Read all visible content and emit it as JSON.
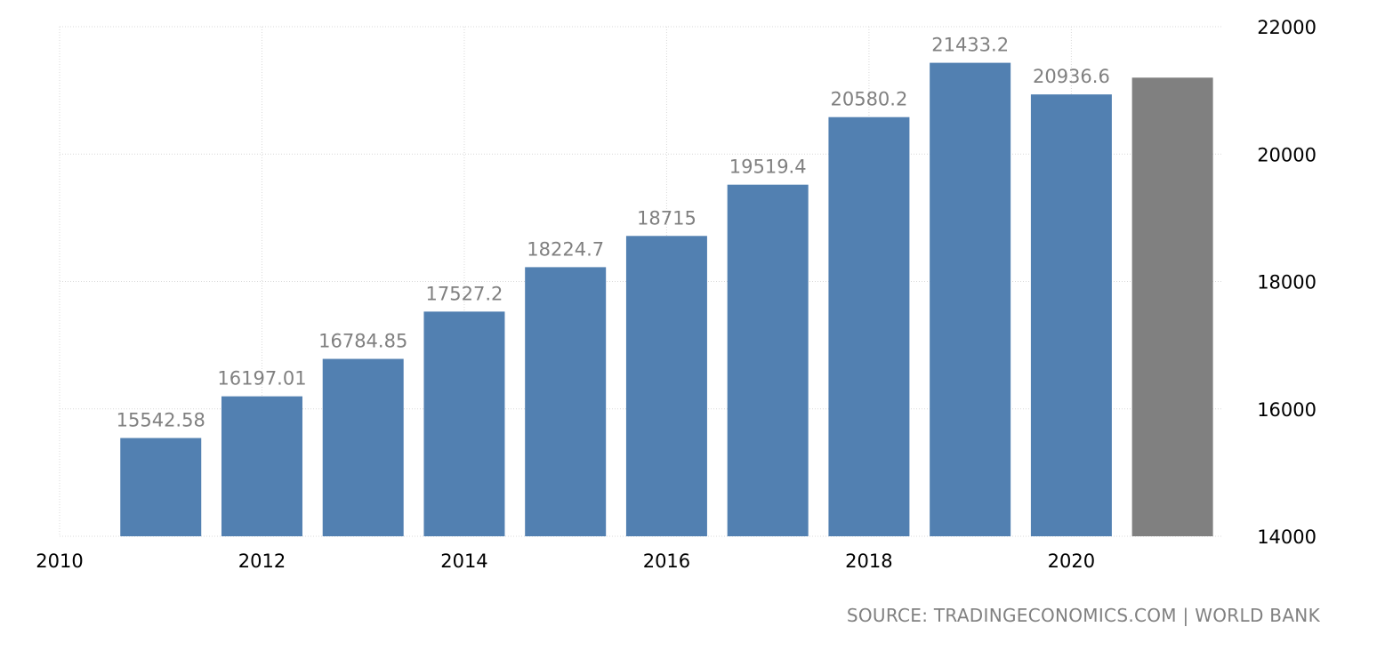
{
  "chart_data": {
    "type": "bar",
    "title": "",
    "xlabel": "",
    "ylabel": "",
    "x": [
      2011,
      2012,
      2013,
      2014,
      2015,
      2016,
      2017,
      2018,
      2019,
      2020,
      2021
    ],
    "values": [
      15542.58,
      16197.01,
      16784.85,
      17527.2,
      18224.7,
      18715,
      19519.4,
      20580.2,
      21433.2,
      20936.6,
      21200
    ],
    "data_labels": [
      "15542.58",
      "16197.01",
      "16784.85",
      "17527.2",
      "18224.7",
      "18715",
      "19519.4",
      "20580.2",
      "21433.2",
      "20936.6",
      ""
    ],
    "xlim": [
      2010,
      2021.5
    ],
    "ylim": [
      14000,
      22000
    ],
    "x_ticks": [
      2010,
      2012,
      2014,
      2016,
      2018,
      2020
    ],
    "y_ticks": [
      14000,
      16000,
      18000,
      20000,
      22000
    ],
    "y_axis_side": "right",
    "grid": true,
    "colors": {
      "bar": "#5280b1",
      "forecast_bar": "#808080"
    },
    "forecast_index": 10
  },
  "source": "SOURCE: TRADINGECONOMICS.COM | WORLD BANK"
}
